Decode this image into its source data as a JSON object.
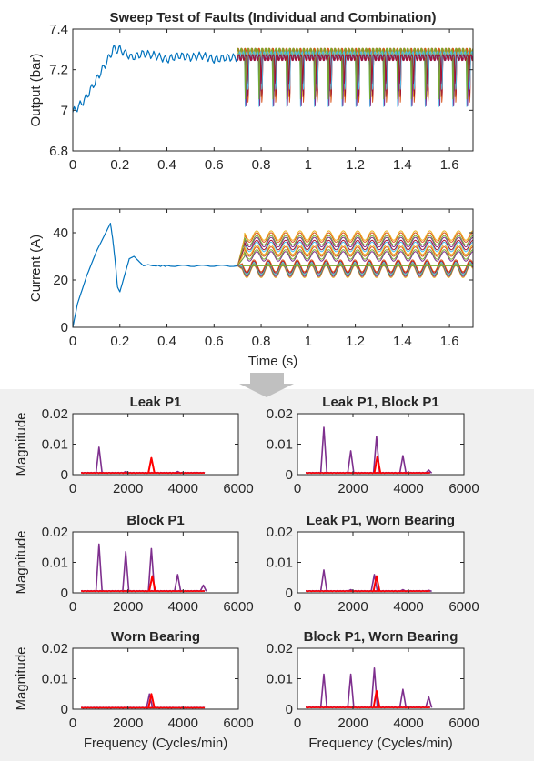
{
  "colors": {
    "top_background": "#ffffff",
    "bottom_background": "#f0f0f0",
    "axes_background": "#ffffff",
    "axis_line": "#262626",
    "arrow": "#c0c0c0",
    "nominal": "#0072bd",
    "series_palette": [
      "#d95319",
      "#edb120",
      "#7e2f8e",
      "#77ac30",
      "#4dbeee",
      "#a2142f"
    ],
    "fft_base": "#7e2f8e",
    "fft_highlight": "#ff0000"
  },
  "chart_data": [
    {
      "id": "output",
      "type": "line",
      "title": "Sweep Test of Faults (Individual and Combination)",
      "xlabel": "",
      "ylabel": "Output (bar)",
      "xlim": [
        0,
        1.7
      ],
      "ylim": [
        6.8,
        7.4
      ],
      "xticks": [
        0,
        0.2,
        0.4,
        0.6,
        0.8,
        1,
        1.2,
        1.4,
        1.6
      ],
      "xtick_labels": [
        "0",
        "0.2",
        "0.4",
        "0.6",
        "0.8",
        "1",
        "1.2",
        "1.4",
        "1.6"
      ],
      "yticks": [
        6.8,
        7,
        7.2,
        7.4
      ],
      "ytick_labels": [
        "6.8",
        "7",
        "7.2",
        "7.4"
      ],
      "grid": false,
      "nominal_series": {
        "x": [
          0,
          0.05,
          0.1,
          0.15,
          0.17,
          0.2,
          0.25,
          0.3,
          0.35,
          0.4,
          0.45,
          0.5,
          0.55,
          0.6,
          0.65,
          0.7
        ],
        "y": [
          6.99,
          7.05,
          7.15,
          7.25,
          7.3,
          7.3,
          7.26,
          7.28,
          7.27,
          7.25,
          7.27,
          7.26,
          7.27,
          7.25,
          7.26,
          7.26
        ]
      },
      "fault_series": {
        "x_start": 0.7,
        "x_end": 1.7,
        "cycles": 17,
        "upper": 7.29,
        "lower": 6.99,
        "count": 12
      }
    },
    {
      "id": "current",
      "type": "line",
      "title": "",
      "xlabel": "Time (s)",
      "ylabel": "Current (A)",
      "xlim": [
        0,
        1.7
      ],
      "ylim": [
        0,
        50
      ],
      "xticks": [
        0,
        0.2,
        0.4,
        0.6,
        0.8,
        1,
        1.2,
        1.4,
        1.6
      ],
      "xtick_labels": [
        "0",
        "0.2",
        "0.4",
        "0.6",
        "0.8",
        "1",
        "1.2",
        "1.4",
        "1.6"
      ],
      "yticks": [
        0,
        20,
        40
      ],
      "ytick_labels": [
        "0",
        "20",
        "40"
      ],
      "grid": false,
      "nominal_series": {
        "x": [
          0,
          0.02,
          0.06,
          0.1,
          0.14,
          0.16,
          0.17,
          0.18,
          0.19,
          0.2,
          0.22,
          0.24,
          0.26,
          0.28,
          0.3,
          0.32,
          0.34,
          0.36,
          0.4,
          0.5,
          0.6,
          0.7
        ],
        "y": [
          0,
          10,
          22,
          32,
          40,
          44,
          37,
          28,
          17,
          15,
          22,
          29,
          30,
          28,
          26,
          26.5,
          26,
          26,
          26,
          26,
          26,
          26
        ]
      },
      "upper_band": {
        "x_start": 0.72,
        "x_end": 1.7,
        "cycles": 16,
        "levels": [
          40,
          38,
          36,
          34,
          32
        ],
        "amplitude": 4
      },
      "lower_band": {
        "x_start": 0.72,
        "x_end": 1.7,
        "cycles": 16,
        "level": 24,
        "amplitude": 5
      }
    },
    {
      "id": "fft-leak-p1",
      "type": "line",
      "title": "Leak P1",
      "xlabel": "",
      "ylabel": "Magnitude",
      "xlim": [
        0,
        6000
      ],
      "ylim": [
        0,
        0.02
      ],
      "xticks": [
        0,
        2000,
        4000,
        6000
      ],
      "xtick_labels": [
        "0",
        "2000",
        "4000",
        "6000"
      ],
      "yticks": [
        0,
        0.01,
        0.02
      ],
      "ytick_labels": [
        "0",
        "0.01",
        "0.02"
      ],
      "freq_range": [
        300,
        4800
      ],
      "base_level": 0.0005,
      "peaks": [
        {
          "x": 950,
          "y": 0.009,
          "c": "p"
        },
        {
          "x": 1920,
          "y": 0.001,
          "c": "p"
        },
        {
          "x": 2850,
          "y": 0.0055,
          "c": "r"
        },
        {
          "x": 3800,
          "y": 0.001,
          "c": "p"
        }
      ]
    },
    {
      "id": "fft-leak-p1-block-p1",
      "type": "line",
      "title": "Leak P1, Block P1",
      "xlabel": "",
      "ylabel": "",
      "xlim": [
        0,
        6000
      ],
      "ylim": [
        0,
        0.02
      ],
      "xticks": [
        0,
        2000,
        4000,
        6000
      ],
      "xtick_labels": [
        "0",
        "2000",
        "4000",
        "6000"
      ],
      "yticks": [
        0,
        0.01,
        0.02
      ],
      "ytick_labels": [
        "0",
        "0.01",
        "0.02"
      ],
      "freq_range": [
        300,
        4800
      ],
      "base_level": 0.0005,
      "peaks": [
        {
          "x": 950,
          "y": 0.0155,
          "c": "p"
        },
        {
          "x": 1920,
          "y": 0.0078,
          "c": "p"
        },
        {
          "x": 2850,
          "y": 0.0125,
          "c": "p"
        },
        {
          "x": 2880,
          "y": 0.006,
          "c": "r"
        },
        {
          "x": 3800,
          "y": 0.0062,
          "c": "p"
        },
        {
          "x": 4730,
          "y": 0.0015,
          "c": "p"
        }
      ]
    },
    {
      "id": "fft-block-p1",
      "type": "line",
      "title": "Block P1",
      "xlabel": "",
      "ylabel": "Magnitude",
      "xlim": [
        0,
        6000
      ],
      "ylim": [
        0,
        0.02
      ],
      "xticks": [
        0,
        2000,
        4000,
        6000
      ],
      "xtick_labels": [
        "0",
        "2000",
        "4000",
        "6000"
      ],
      "yticks": [
        0,
        0.01,
        0.02
      ],
      "ytick_labels": [
        "0",
        "0.01",
        "0.02"
      ],
      "freq_range": [
        300,
        4800
      ],
      "base_level": 0.0005,
      "peaks": [
        {
          "x": 950,
          "y": 0.016,
          "c": "p"
        },
        {
          "x": 1920,
          "y": 0.0135,
          "c": "p"
        },
        {
          "x": 2850,
          "y": 0.0145,
          "c": "p"
        },
        {
          "x": 2880,
          "y": 0.0055,
          "c": "r"
        },
        {
          "x": 3800,
          "y": 0.006,
          "c": "p"
        },
        {
          "x": 4730,
          "y": 0.0025,
          "c": "p"
        }
      ]
    },
    {
      "id": "fft-leak-p1-worn-bearing",
      "type": "line",
      "title": "Leak P1, Worn Bearing",
      "xlabel": "",
      "ylabel": "",
      "xlim": [
        0,
        6000
      ],
      "ylim": [
        0,
        0.02
      ],
      "xticks": [
        0,
        2000,
        4000,
        6000
      ],
      "xtick_labels": [
        "0",
        "2000",
        "4000",
        "6000"
      ],
      "yticks": [
        0,
        0.01,
        0.02
      ],
      "ytick_labels": [
        "0",
        "0.01",
        "0.02"
      ],
      "freq_range": [
        300,
        4800
      ],
      "base_level": 0.0005,
      "peaks": [
        {
          "x": 950,
          "y": 0.0075,
          "c": "p"
        },
        {
          "x": 1920,
          "y": 0.001,
          "c": "p"
        },
        {
          "x": 2770,
          "y": 0.006,
          "c": "p"
        },
        {
          "x": 2850,
          "y": 0.0055,
          "c": "r"
        },
        {
          "x": 3800,
          "y": 0.001,
          "c": "p"
        },
        {
          "x": 4730,
          "y": 0.0008,
          "c": "p"
        }
      ]
    },
    {
      "id": "fft-worn-bearing",
      "type": "line",
      "title": "Worn Bearing",
      "xlabel": "Frequency (Cycles/min)",
      "ylabel": "Magnitude",
      "xlim": [
        0,
        6000
      ],
      "ylim": [
        0,
        0.02
      ],
      "xticks": [
        0,
        2000,
        4000,
        6000
      ],
      "xtick_labels": [
        "0",
        "2000",
        "4000",
        "6000"
      ],
      "yticks": [
        0,
        0.01,
        0.02
      ],
      "ytick_labels": [
        "0",
        "0.01",
        "0.02"
      ],
      "freq_range": [
        300,
        4800
      ],
      "base_level": 0.0004,
      "peaks": [
        {
          "x": 2780,
          "y": 0.005,
          "c": "p"
        },
        {
          "x": 2850,
          "y": 0.005,
          "c": "r"
        }
      ]
    },
    {
      "id": "fft-block-p1-worn-bearing",
      "type": "line",
      "title": "Block P1, Worn Bearing",
      "xlabel": "Frequency (Cycles/min)",
      "ylabel": "",
      "xlim": [
        0,
        6000
      ],
      "ylim": [
        0,
        0.02
      ],
      "xticks": [
        0,
        2000,
        4000,
        6000
      ],
      "xtick_labels": [
        "0",
        "2000",
        "4000",
        "6000"
      ],
      "yticks": [
        0,
        0.01,
        0.02
      ],
      "ytick_labels": [
        "0",
        "0.01",
        "0.02"
      ],
      "freq_range": [
        300,
        4800
      ],
      "base_level": 0.0005,
      "peaks": [
        {
          "x": 950,
          "y": 0.0115,
          "c": "p"
        },
        {
          "x": 1920,
          "y": 0.0115,
          "c": "p"
        },
        {
          "x": 2770,
          "y": 0.0135,
          "c": "p"
        },
        {
          "x": 2850,
          "y": 0.006,
          "c": "r"
        },
        {
          "x": 3800,
          "y": 0.0065,
          "c": "p"
        },
        {
          "x": 4730,
          "y": 0.004,
          "c": "p"
        }
      ]
    }
  ]
}
